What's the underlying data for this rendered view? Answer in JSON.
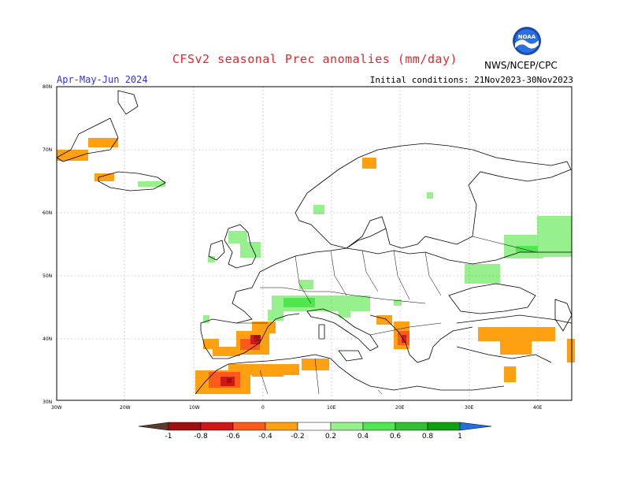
{
  "header": {
    "title": "CFSv2 seasonal Prec anomalies (mm/day)",
    "period": "Apr-May-Jun 2024",
    "initial_conditions": "Initial conditions: 21Nov2023-30Nov2023",
    "org": "NWS/NCEP/CPC",
    "logo_text": "NOAA"
  },
  "axes": {
    "lat_labels": [
      "80N",
      "70N",
      "60N",
      "50N",
      "40N",
      "30N"
    ],
    "lon_labels": [
      "30W",
      "20W",
      "10W",
      "0",
      "10E",
      "20E",
      "30E",
      "40E"
    ]
  },
  "colorbar": {
    "labels": [
      "-1",
      "-0.8",
      "-0.6",
      "-0.4",
      "-0.2",
      "0.2",
      "0.4",
      "0.6",
      "0.8",
      "1"
    ],
    "colors": [
      "#5c3a2e",
      "#a01010",
      "#d01818",
      "#ff5a1a",
      "#ffa010",
      "#ffffff",
      "#96f08c",
      "#50e650",
      "#30c030",
      "#0ea00e",
      "#2070e0"
    ]
  },
  "anomaly_colors": {
    "light_dry": "#ffa010",
    "moderate_dry": "#ff5a1a",
    "strong_dry": "#d01818",
    "extreme_dry": "#a01010",
    "light_wet": "#96f08c",
    "moderate_wet": "#50e650"
  }
}
